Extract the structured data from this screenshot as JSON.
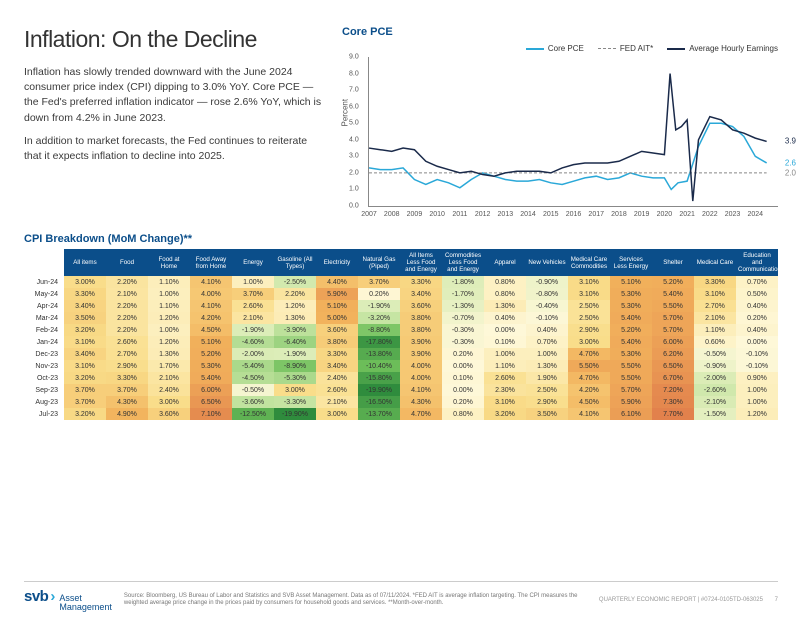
{
  "header": {
    "title": "Inflation: On the Decline",
    "para1": "Inflation has slowly trended downward with the June 2024 consumer price index (CPI) dipping to 3.0% YoY. Core PCE — the Fed's preferred inflation indicator — rose 2.6% YoY, which is down from 4.2% in June 2023.",
    "para2": "In addition to market forecasts, the Fed continues to reiterate that it expects inflation to decline into 2025."
  },
  "linechart": {
    "title": "Core PCE",
    "ylabel": "Percent",
    "legend": [
      {
        "label": "Core PCE",
        "color": "#2aa8d8",
        "dash": "none",
        "width": 1.5
      },
      {
        "label": "FED AIT*",
        "color": "#888888",
        "dash": "3,2",
        "width": 1
      },
      {
        "label": "Average Hourly Earnings",
        "color": "#1a2a4a",
        "dash": "none",
        "width": 1.5
      }
    ],
    "x_range": [
      2007,
      2025
    ],
    "y_range": [
      0,
      9
    ],
    "y_ticks": [
      0,
      1,
      2,
      3,
      4,
      5,
      6,
      7,
      8,
      9
    ],
    "x_ticks": [
      2007,
      2008,
      2009,
      2010,
      2011,
      2012,
      2013,
      2014,
      2015,
      2016,
      2017,
      2018,
      2019,
      2020,
      2021,
      2022,
      2023,
      2024
    ],
    "series": {
      "core_pce": {
        "color": "#2aa8d8",
        "dash": "none",
        "width": 1.5,
        "pts": [
          [
            2007,
            2.3
          ],
          [
            2007.5,
            2.2
          ],
          [
            2008,
            2.2
          ],
          [
            2008.5,
            2.3
          ],
          [
            2009,
            1.6
          ],
          [
            2009.5,
            1.3
          ],
          [
            2010,
            1.6
          ],
          [
            2010.5,
            1.4
          ],
          [
            2011,
            1.1
          ],
          [
            2011.5,
            1.6
          ],
          [
            2012,
            2.0
          ],
          [
            2012.5,
            1.8
          ],
          [
            2013,
            1.6
          ],
          [
            2013.5,
            1.5
          ],
          [
            2014,
            1.5
          ],
          [
            2014.5,
            1.6
          ],
          [
            2015,
            1.4
          ],
          [
            2015.5,
            1.3
          ],
          [
            2016,
            1.5
          ],
          [
            2016.5,
            1.7
          ],
          [
            2017,
            1.8
          ],
          [
            2017.5,
            1.6
          ],
          [
            2018,
            1.7
          ],
          [
            2018.5,
            2.0
          ],
          [
            2019,
            1.8
          ],
          [
            2019.5,
            1.7
          ],
          [
            2020,
            1.7
          ],
          [
            2020.3,
            1.0
          ],
          [
            2020.6,
            1.4
          ],
          [
            2021,
            1.5
          ],
          [
            2021.5,
            3.6
          ],
          [
            2022,
            5.0
          ],
          [
            2022.5,
            5.0
          ],
          [
            2023,
            4.8
          ],
          [
            2023.5,
            4.2
          ],
          [
            2024,
            3.0
          ],
          [
            2024.5,
            2.6
          ]
        ]
      },
      "fed_ait": {
        "color": "#888888",
        "dash": "3,2",
        "width": 1,
        "pts": [
          [
            2007,
            2.0
          ],
          [
            2024.5,
            2.0
          ]
        ]
      },
      "ahe": {
        "color": "#1a2a4a",
        "dash": "none",
        "width": 1.5,
        "pts": [
          [
            2007,
            3.5
          ],
          [
            2007.5,
            3.4
          ],
          [
            2008,
            3.3
          ],
          [
            2008.5,
            3.5
          ],
          [
            2009,
            3.4
          ],
          [
            2009.5,
            2.7
          ],
          [
            2010,
            2.4
          ],
          [
            2010.5,
            2.2
          ],
          [
            2011,
            2.0
          ],
          [
            2011.5,
            2.1
          ],
          [
            2012,
            1.9
          ],
          [
            2012.5,
            1.8
          ],
          [
            2013,
            2.0
          ],
          [
            2013.5,
            2.1
          ],
          [
            2014,
            2.1
          ],
          [
            2014.5,
            2.1
          ],
          [
            2015,
            2.0
          ],
          [
            2015.5,
            2.3
          ],
          [
            2016,
            2.5
          ],
          [
            2016.5,
            2.6
          ],
          [
            2017,
            2.6
          ],
          [
            2017.5,
            2.6
          ],
          [
            2018,
            2.7
          ],
          [
            2018.5,
            3.0
          ],
          [
            2019,
            3.3
          ],
          [
            2019.5,
            3.2
          ],
          [
            2020,
            3.1
          ],
          [
            2020.25,
            8.0
          ],
          [
            2020.5,
            4.6
          ],
          [
            2020.75,
            4.8
          ],
          [
            2021,
            5.2
          ],
          [
            2021.25,
            0.3
          ],
          [
            2021.5,
            4.0
          ],
          [
            2022,
            5.4
          ],
          [
            2022.5,
            5.2
          ],
          [
            2023,
            4.6
          ],
          [
            2023.5,
            4.4
          ],
          [
            2024,
            4.1
          ],
          [
            2024.5,
            3.9
          ]
        ]
      }
    },
    "end_labels": [
      {
        "value": "3.9",
        "y": 3.9,
        "color": "#1a2a4a"
      },
      {
        "value": "2.6",
        "y": 2.6,
        "color": "#2aa8d8"
      },
      {
        "value": "2.0",
        "y": 2.0,
        "color": "#888888"
      }
    ]
  },
  "cpi": {
    "title": "CPI Breakdown (MoM Change)**",
    "columns": [
      "",
      "All items",
      "Food",
      "Food at Home",
      "Food Away from Home",
      "Energy",
      "Gasoline (All Types)",
      "Electricity",
      "Natural Gas (Piped)",
      "All Items Less Food and Energy",
      "Commodities Less Food and Energy",
      "Apparel",
      "New Vehicles",
      "Medical Care Commodities",
      "Services Less Energy",
      "Shelter",
      "Medical Care",
      "Education and Communication"
    ],
    "rows": [
      {
        "label": "Jun-24",
        "cells": [
          "3.00%",
          "2.20%",
          "1.10%",
          "4.10%",
          "1.00%",
          "-2.50%",
          "4.40%",
          "3.70%",
          "3.30%",
          "-1.80%",
          "0.80%",
          "-0.90%",
          "3.10%",
          "5.10%",
          "5.20%",
          "3.30%",
          "0.70%"
        ]
      },
      {
        "label": "May-24",
        "cells": [
          "3.30%",
          "2.10%",
          "1.00%",
          "4.00%",
          "3.70%",
          "2.20%",
          "5.90%",
          "0.20%",
          "3.40%",
          "-1.70%",
          "0.80%",
          "-0.80%",
          "3.10%",
          "5.30%",
          "5.40%",
          "3.10%",
          "0.50%"
        ]
      },
      {
        "label": "Apr-24",
        "cells": [
          "3.40%",
          "2.20%",
          "1.10%",
          "4.10%",
          "2.60%",
          "1.20%",
          "5.10%",
          "-1.90%",
          "3.60%",
          "-1.30%",
          "1.30%",
          "-0.40%",
          "2.50%",
          "5.30%",
          "5.50%",
          "2.70%",
          "0.40%"
        ]
      },
      {
        "label": "Mar-24",
        "cells": [
          "3.50%",
          "2.20%",
          "1.20%",
          "4.20%",
          "2.10%",
          "1.30%",
          "5.00%",
          "-3.20%",
          "3.80%",
          "-0.70%",
          "0.40%",
          "-0.10%",
          "2.50%",
          "5.40%",
          "5.70%",
          "2.10%",
          "0.20%"
        ]
      },
      {
        "label": "Feb-24",
        "cells": [
          "3.20%",
          "2.20%",
          "1.00%",
          "4.50%",
          "-1.90%",
          "-3.90%",
          "3.60%",
          "-8.80%",
          "3.80%",
          "-0.30%",
          "0.00%",
          "0.40%",
          "2.90%",
          "5.20%",
          "5.70%",
          "1.10%",
          "0.40%"
        ]
      },
      {
        "label": "Jan-24",
        "cells": [
          "3.10%",
          "2.60%",
          "1.20%",
          "5.10%",
          "-4.60%",
          "-6.40%",
          "3.80%",
          "-17.80%",
          "3.90%",
          "-0.30%",
          "0.10%",
          "0.70%",
          "3.00%",
          "5.40%",
          "6.00%",
          "0.60%",
          "0.00%"
        ]
      },
      {
        "label": "Dec-23",
        "cells": [
          "3.40%",
          "2.70%",
          "1.30%",
          "5.20%",
          "-2.00%",
          "-1.90%",
          "3.30%",
          "-13.80%",
          "3.90%",
          "0.20%",
          "1.00%",
          "1.00%",
          "4.70%",
          "5.30%",
          "6.20%",
          "-0.50%",
          "-0.10%"
        ]
      },
      {
        "label": "Nov-23",
        "cells": [
          "3.10%",
          "2.90%",
          "1.70%",
          "5.30%",
          "-5.40%",
          "-8.90%",
          "3.40%",
          "-10.40%",
          "4.00%",
          "0.00%",
          "1.10%",
          "1.30%",
          "5.50%",
          "5.50%",
          "6.50%",
          "-0.90%",
          "-0.10%"
        ]
      },
      {
        "label": "Oct-23",
        "cells": [
          "3.20%",
          "3.30%",
          "2.10%",
          "5.40%",
          "-4.50%",
          "-5.30%",
          "2.40%",
          "-15.80%",
          "4.00%",
          "0.10%",
          "2.60%",
          "1.90%",
          "4.70%",
          "5.50%",
          "6.70%",
          "-2.00%",
          "0.90%"
        ]
      },
      {
        "label": "Sep-23",
        "cells": [
          "3.70%",
          "3.70%",
          "2.40%",
          "6.00%",
          "-0.50%",
          "3.00%",
          "2.60%",
          "-19.90%",
          "4.10%",
          "0.00%",
          "2.30%",
          "2.50%",
          "4.20%",
          "5.70%",
          "7.20%",
          "-2.60%",
          "1.00%"
        ]
      },
      {
        "label": "Aug-23",
        "cells": [
          "3.70%",
          "4.30%",
          "3.00%",
          "6.50%",
          "-3.60%",
          "-3.30%",
          "2.10%",
          "-16.50%",
          "4.30%",
          "0.20%",
          "3.10%",
          "2.90%",
          "4.50%",
          "5.90%",
          "7.30%",
          "-2.10%",
          "1.00%"
        ]
      },
      {
        "label": "Jul-23",
        "cells": [
          "3.20%",
          "4.90%",
          "3.60%",
          "7.10%",
          "-12.50%",
          "-19.90%",
          "3.00%",
          "-13.70%",
          "4.70%",
          "0.80%",
          "3.20%",
          "3.50%",
          "4.10%",
          "6.10%",
          "7.70%",
          "-1.50%",
          "1.20%"
        ]
      }
    ],
    "heat": {
      "min": -20,
      "max": 8,
      "stops": [
        {
          "v": -20,
          "c": "#2e8b3d"
        },
        {
          "v": -10,
          "c": "#6fbf5a"
        },
        {
          "v": -3,
          "c": "#c9e6a5"
        },
        {
          "v": 0,
          "c": "#fef8d8"
        },
        {
          "v": 3,
          "c": "#f9dd8a"
        },
        {
          "v": 5,
          "c": "#f2b25c"
        },
        {
          "v": 8,
          "c": "#e07b4a"
        }
      ]
    }
  },
  "footer": {
    "logo_svb": "svb",
    "logo_am": "Asset\nManagement",
    "source": "Source: Bloomberg, US Bureau of Labor and Statistics and SVB Asset Management. Data as of 07/11/2024. *FED AIT is average inflation targeting. The CPI measures the weighted average price change in the prices paid by consumers for household goods and services.  **Month-over-month.",
    "report": "QUARTERLY ECONOMIC REPORT  |  #0724-0105TD-063025",
    "page": "7"
  }
}
